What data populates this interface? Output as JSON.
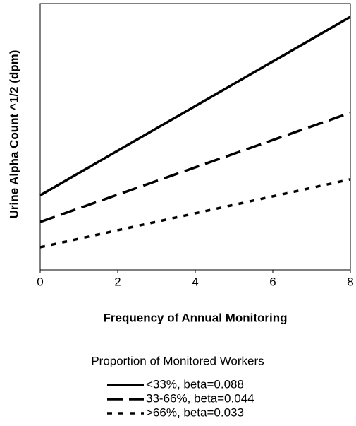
{
  "chart_data": {
    "type": "line",
    "xlabel": "Frequency of Annual Monitoring",
    "ylabel": "Urine Alpha Count ^1/2 (dpm)",
    "x": [
      0,
      8
    ],
    "xlim": [
      0,
      8
    ],
    "xticks": [
      0,
      2,
      4,
      6,
      8
    ],
    "ylim": [
      0,
      1
    ],
    "legend_title": "Proportion of Monitored Workers",
    "series": [
      {
        "name": "<33%, beta=0.088",
        "color": "#000000",
        "style": "solid",
        "values": [
          0.28,
          0.95
        ]
      },
      {
        "name": "33-66%, beta=0.044",
        "color": "#000000",
        "style": "dashed",
        "values": [
          0.18,
          0.59
        ]
      },
      {
        "name": ">66%, beta=0.033",
        "color": "#000000",
        "style": "dotted",
        "values": [
          0.085,
          0.34
        ]
      }
    ]
  }
}
